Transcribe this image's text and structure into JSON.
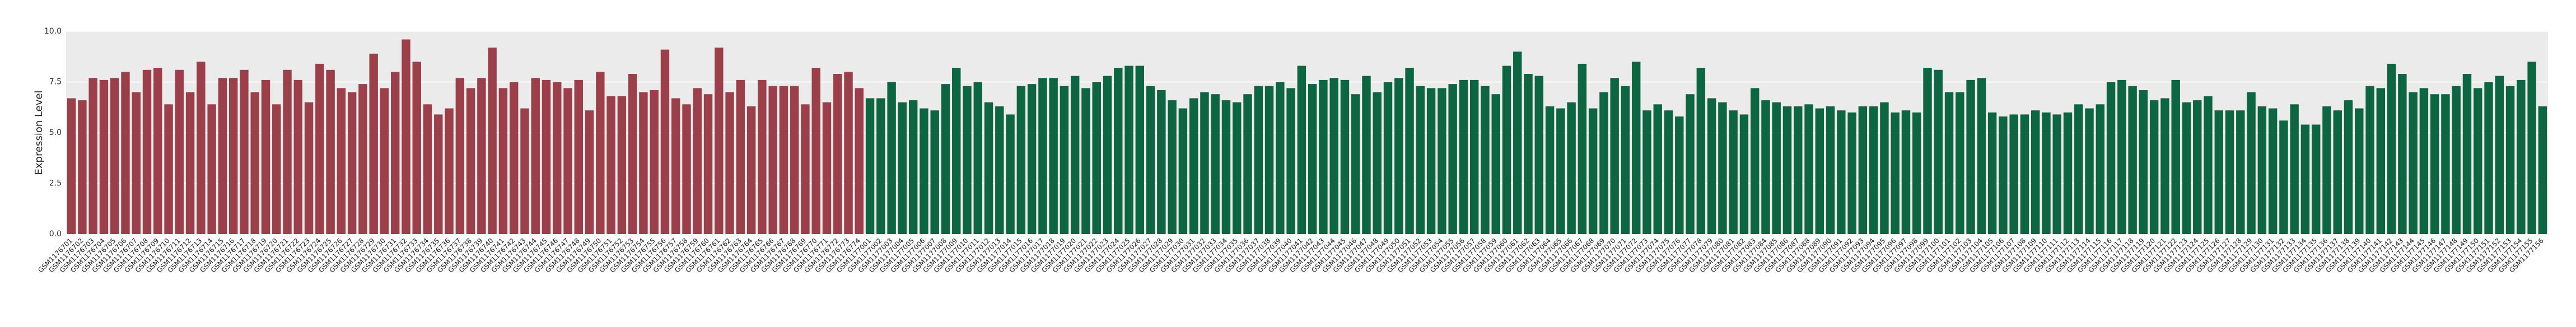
{
  "chart_data": {
    "type": "bar",
    "ylabel": "Expression Level",
    "ylim": [
      0,
      10
    ],
    "yticks": [
      {
        "value": 0,
        "label": "0.0"
      },
      {
        "value": 2.5,
        "label": "2.5"
      },
      {
        "value": 5,
        "label": "5.0"
      },
      {
        "value": 7.5,
        "label": "7.5"
      },
      {
        "value": 10,
        "label": "10.0"
      }
    ],
    "grid": true,
    "series": [
      {
        "color": "#9b3f4a",
        "categories": [
          "GSM1176701",
          "GSM1176702",
          "GSM1176703",
          "GSM1176704",
          "GSM1176705",
          "GSM1176706",
          "GSM1176707",
          "GSM1176708",
          "GSM1176709",
          "GSM1176710",
          "GSM1176711",
          "GSM1176712",
          "GSM1176713",
          "GSM1176714",
          "GSM1176715",
          "GSM1176716",
          "GSM1176717",
          "GSM1176718",
          "GSM1176719",
          "GSM1176720",
          "GSM1176721",
          "GSM1176722",
          "GSM1176723",
          "GSM1176724",
          "GSM1176725",
          "GSM1176726",
          "GSM1176727",
          "GSM1176728",
          "GSM1176729",
          "GSM1176730",
          "GSM1176731",
          "GSM1176732",
          "GSM1176733",
          "GSM1176734",
          "GSM1176735",
          "GSM1176736",
          "GSM1176737",
          "GSM1176738",
          "GSM1176739",
          "GSM1176740",
          "GSM1176741",
          "GSM1176742",
          "GSM1176743",
          "GSM1176744",
          "GSM1176745",
          "GSM1176746",
          "GSM1176747",
          "GSM1176748",
          "GSM1176749",
          "GSM1176750",
          "GSM1176751",
          "GSM1176752",
          "GSM1176753",
          "GSM1176754",
          "GSM1176755",
          "GSM1176756",
          "GSM1176757",
          "GSM1176758",
          "GSM1176759",
          "GSM1176760",
          "GSM1176761",
          "GSM1176762",
          "GSM1176763",
          "GSM1176764",
          "GSM1176765",
          "GSM1176766",
          "GSM1176767",
          "GSM1176768",
          "GSM1176769",
          "GSM1176770",
          "GSM1176771",
          "GSM1176772",
          "GSM1176773",
          "GSM1176774"
        ],
        "values": [
          6.7,
          6.6,
          7.7,
          7.6,
          7.7,
          8.0,
          7.0,
          8.1,
          8.2,
          6.4,
          8.1,
          7.0,
          8.5,
          6.4,
          7.7,
          7.7,
          8.1,
          7.0,
          7.6,
          6.4,
          8.1,
          7.6,
          6.5,
          8.4,
          8.1,
          7.2,
          7.0,
          7.4,
          8.9,
          7.2,
          8.0,
          9.6,
          8.5,
          6.4,
          5.9,
          6.2,
          7.7,
          7.2,
          7.7,
          9.2,
          7.2,
          7.5,
          6.2,
          7.7,
          7.6,
          7.5,
          7.2,
          7.6,
          6.1,
          8.0,
          6.8,
          6.8,
          7.9,
          7.0,
          7.1,
          9.1,
          6.7,
          6.4,
          7.2,
          6.9,
          9.2,
          7.0,
          7.6,
          6.3,
          7.6,
          7.3,
          7.3,
          7.3,
          6.4,
          8.2,
          6.5,
          7.9,
          8.0,
          7.2
        ]
      },
      {
        "color": "#0d6641",
        "categories": [
          "GSM1177001",
          "GSM1177002",
          "GSM1177003",
          "GSM1177004",
          "GSM1177005",
          "GSM1177006",
          "GSM1177007",
          "GSM1177008",
          "GSM1177009",
          "GSM1177010",
          "GSM1177011",
          "GSM1177012",
          "GSM1177013",
          "GSM1177014",
          "GSM1177015",
          "GSM1177016",
          "GSM1177017",
          "GSM1177018",
          "GSM1177019",
          "GSM1177020",
          "GSM1177021",
          "GSM1177022",
          "GSM1177023",
          "GSM1177024",
          "GSM1177025",
          "GSM1177026",
          "GSM1177027",
          "GSM1177028",
          "GSM1177029",
          "GSM1177030",
          "GSM1177031",
          "GSM1177032",
          "GSM1177033",
          "GSM1177034",
          "GSM1177035",
          "GSM1177036",
          "GSM1177037",
          "GSM1177038",
          "GSM1177039",
          "GSM1177040",
          "GSM1177041",
          "GSM1177042",
          "GSM1177043",
          "GSM1177044",
          "GSM1177045",
          "GSM1177046",
          "GSM1177047",
          "GSM1177048",
          "GSM1177049",
          "GSM1177050",
          "GSM1177051",
          "GSM1177052",
          "GSM1177053",
          "GSM1177054",
          "GSM1177055",
          "GSM1177056",
          "GSM1177057",
          "GSM1177058",
          "GSM1177059",
          "GSM1177060",
          "GSM1177061",
          "GSM1177062",
          "GSM1177063",
          "GSM1177064",
          "GSM1177065",
          "GSM1177066",
          "GSM1177067",
          "GSM1177068",
          "GSM1177069",
          "GSM1177070",
          "GSM1177071",
          "GSM1177072",
          "GSM1177073",
          "GSM1177074",
          "GSM1177075",
          "GSM1177076",
          "GSM1177077",
          "GSM1177078",
          "GSM1177079",
          "GSM1177080",
          "GSM1177081",
          "GSM1177082",
          "GSM1177083",
          "GSM1177084",
          "GSM1177085",
          "GSM1177086",
          "GSM1177087",
          "GSM1177088",
          "GSM1177089",
          "GSM1177090",
          "GSM1177091",
          "GSM1177092",
          "GSM1177093",
          "GSM1177094",
          "GSM1177095",
          "GSM1177096",
          "GSM1177097",
          "GSM1177098",
          "GSM1177099",
          "GSM1177100",
          "GSM1177101",
          "GSM1177102",
          "GSM1177103",
          "GSM1177104",
          "GSM1177105",
          "GSM1177106",
          "GSM1177107",
          "GSM1177108",
          "GSM1177109",
          "GSM1177110",
          "GSM1177111",
          "GSM1177112",
          "GSM1177113",
          "GSM1177114",
          "GSM1177115",
          "GSM1177116",
          "GSM1177117",
          "GSM1177118",
          "GSM1177119",
          "GSM1177120",
          "GSM1177121",
          "GSM1177122",
          "GSM1177123",
          "GSM1177124",
          "GSM1177125",
          "GSM1177126",
          "GSM1177127",
          "GSM1177128",
          "GSM1177129",
          "GSM1177130",
          "GSM1177131",
          "GSM1177132",
          "GSM1177133",
          "GSM1177134",
          "GSM1177135",
          "GSM1177136",
          "GSM1177137",
          "GSM1177138",
          "GSM1177139",
          "GSM1177140",
          "GSM1177141",
          "GSM1177142",
          "GSM1177143",
          "GSM1177144",
          "GSM1177145",
          "GSM1177146",
          "GSM1177147",
          "GSM1177148",
          "GSM1177149",
          "GSM1177150",
          "GSM1177151",
          "GSM1177152",
          "GSM1177153",
          "GSM1177154",
          "GSM1177155",
          "GSM1177156"
        ],
        "values": [
          6.7,
          6.7,
          7.5,
          6.5,
          6.6,
          6.2,
          6.1,
          7.4,
          8.2,
          7.3,
          7.5,
          6.5,
          6.3,
          5.9,
          7.3,
          7.4,
          7.7,
          7.7,
          7.3,
          7.8,
          7.2,
          7.5,
          7.8,
          8.2,
          8.3,
          8.3,
          7.3,
          7.1,
          6.6,
          6.2,
          6.7,
          7.0,
          6.9,
          6.6,
          6.5,
          6.9,
          7.3,
          7.3,
          7.5,
          7.2,
          8.3,
          7.4,
          7.6,
          7.7,
          7.6,
          6.9,
          7.8,
          7.0,
          7.5,
          7.7,
          8.2,
          7.3,
          7.2,
          7.2,
          7.4,
          7.6,
          7.6,
          7.3,
          6.9,
          8.3,
          9.0,
          7.9,
          7.8,
          6.3,
          6.2,
          6.5,
          8.4,
          6.2,
          7.0,
          7.7,
          7.3,
          8.5,
          6.1,
          6.4,
          6.1,
          5.8,
          6.9,
          8.2,
          6.7,
          6.5,
          6.1,
          5.9,
          7.2,
          6.6,
          6.5,
          6.3,
          6.3,
          6.4,
          6.2,
          6.3,
          6.1,
          6.0,
          6.3,
          6.3,
          6.5,
          6.0,
          6.1,
          6.0,
          8.2,
          8.1,
          7.0,
          7.0,
          7.6,
          7.7,
          6.0,
          5.8,
          5.9,
          5.9,
          6.1,
          6.0,
          5.9,
          6.0,
          6.4,
          6.2,
          6.4,
          7.5,
          7.6,
          7.3,
          7.1,
          6.6,
          6.7,
          7.6,
          6.5,
          6.6,
          6.8,
          6.1,
          6.1,
          6.1,
          7.0,
          6.3,
          6.2,
          5.6,
          6.4,
          5.4,
          5.4,
          6.3,
          6.1,
          6.6,
          6.2,
          7.3,
          7.2,
          8.4,
          7.9,
          7.0,
          7.2,
          6.9,
          6.9,
          7.3,
          7.9,
          7.2,
          7.5,
          7.8,
          7.3,
          7.6,
          8.5,
          6.3
        ]
      }
    ]
  }
}
